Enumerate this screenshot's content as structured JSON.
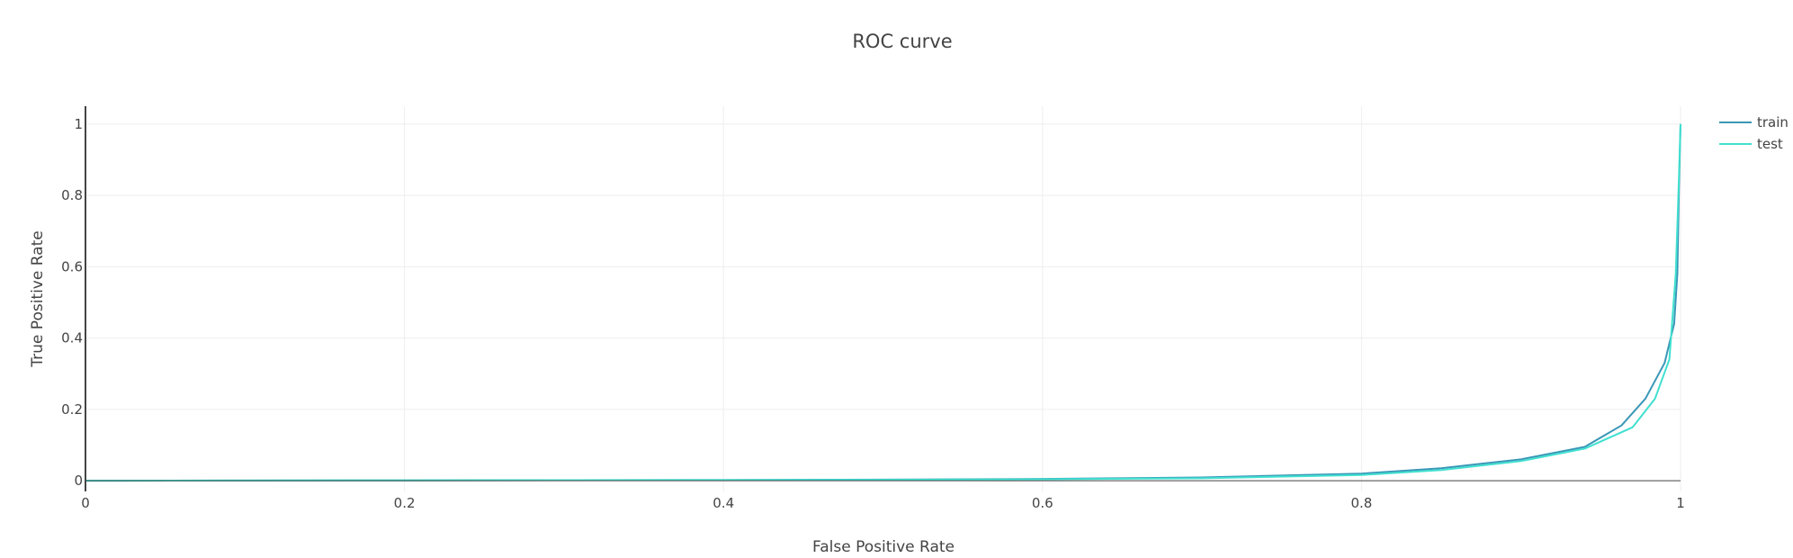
{
  "chart_data": {
    "type": "line",
    "title": "ROC curve",
    "xlabel": "False Positive Rate",
    "ylabel": "True Positive Rate",
    "xlim": [
      0,
      1
    ],
    "ylim": [
      -0.03,
      1.05
    ],
    "xticks": [
      0,
      0.2,
      0.4,
      0.6,
      0.8,
      1
    ],
    "xtick_labels": [
      "0",
      "0.2",
      "0.4",
      "0.6",
      "0.8",
      "1"
    ],
    "yticks": [
      0,
      0.2,
      0.4,
      0.6,
      0.8,
      1
    ],
    "ytick_labels": [
      "0",
      "0.2",
      "0.4",
      "0.6",
      "0.8",
      "1"
    ],
    "grid": true,
    "legend_position": "top-right",
    "series": [
      {
        "name": "train",
        "color": "#3a97b7",
        "x": [
          0,
          0.1,
          0.2,
          0.3,
          0.4,
          0.5,
          0.6,
          0.7,
          0.8,
          0.85,
          0.9,
          0.94,
          0.963,
          0.978,
          0.99,
          0.996,
          0.998,
          0.999,
          1.0
        ],
        "y": [
          0,
          0.0005,
          0.001,
          0.0015,
          0.002,
          0.003,
          0.005,
          0.009,
          0.02,
          0.035,
          0.06,
          0.095,
          0.155,
          0.23,
          0.33,
          0.44,
          0.58,
          0.82,
          1.0
        ]
      },
      {
        "name": "test",
        "color": "#40e0d0",
        "x": [
          0,
          0.1,
          0.2,
          0.3,
          0.4,
          0.5,
          0.6,
          0.7,
          0.8,
          0.85,
          0.9,
          0.94,
          0.97,
          0.984,
          0.993,
          0.997,
          0.999,
          1.0
        ],
        "y": [
          0,
          0.0005,
          0.001,
          0.0015,
          0.002,
          0.0025,
          0.004,
          0.007,
          0.016,
          0.03,
          0.055,
          0.09,
          0.15,
          0.23,
          0.34,
          0.58,
          0.85,
          1.0
        ]
      }
    ]
  }
}
